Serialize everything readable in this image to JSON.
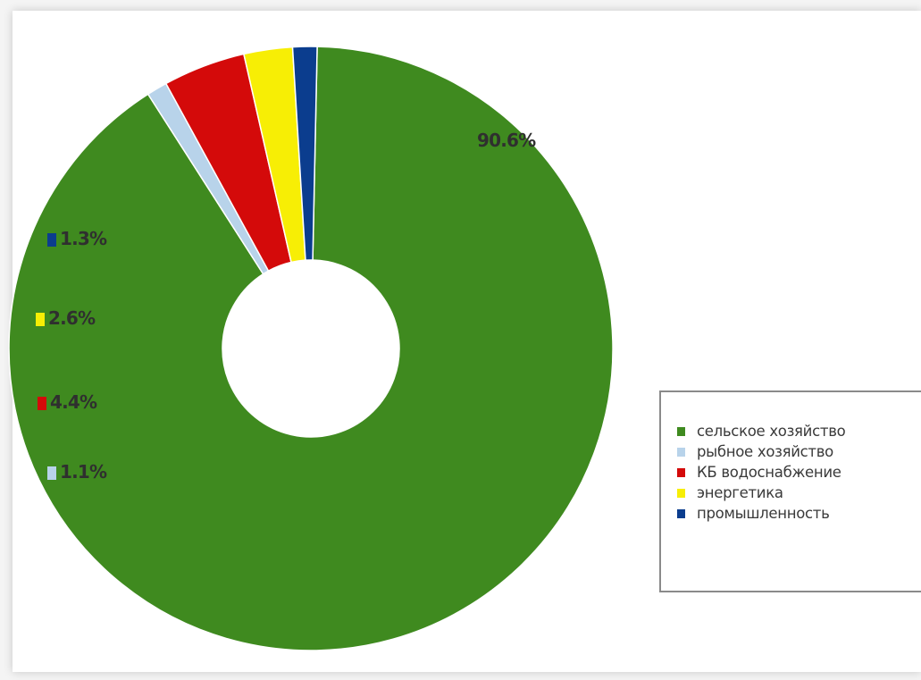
{
  "chart_data": {
    "type": "pie",
    "variant": "donut",
    "title": "",
    "slices": [
      {
        "label": "сельское хозяйство",
        "value": 90.6,
        "display": "90.6%",
        "color": "#3f8a1f"
      },
      {
        "label": "рыбное хозяйство",
        "value": 1.1,
        "display": "1.1%",
        "color": "#b8d3ea"
      },
      {
        "label": "КБ водоснабжение",
        "value": 4.4,
        "display": "4.4%",
        "color": "#d40a0a"
      },
      {
        "label": "энергетика",
        "value": 2.6,
        "display": "2.6%",
        "color": "#f7ee05"
      },
      {
        "label": "промышленность",
        "value": 1.3,
        "display": "1.3%",
        "color": "#0b3d8e"
      }
    ],
    "legend": {
      "placement": "right",
      "entries": [
        "сельское хозяйство",
        "рыбное хозяйство",
        "КБ водоснабжение",
        "энергетика",
        "промышленность"
      ]
    }
  }
}
